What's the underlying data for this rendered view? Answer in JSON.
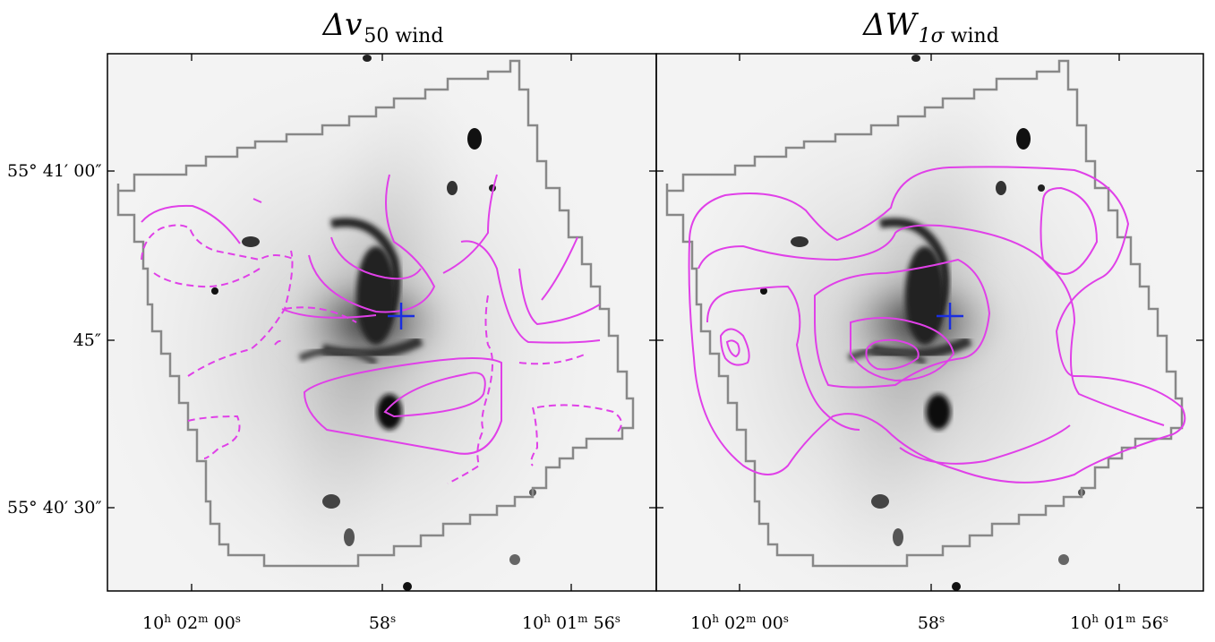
{
  "panels": [
    {
      "title_main": "Δv",
      "title_sub": "50 wind",
      "title_sub_italic": ""
    },
    {
      "title_main": "ΔW",
      "title_sub": " wind",
      "title_sub_italic": "1σ"
    }
  ],
  "y_ticks": [
    {
      "deg": "55°",
      "min": "41′",
      "sec": "00″"
    },
    {
      "deg": "",
      "min": "",
      "sec": "45″"
    },
    {
      "deg": "55°",
      "min": "40′",
      "sec": "30″"
    }
  ],
  "x_ticks": [
    {
      "h": "10",
      "hu": "h",
      "m": "02",
      "mu": "m",
      "s": "00",
      "su": "s"
    },
    {
      "h": "",
      "hu": "",
      "m": "",
      "mu": "",
      "s": "58",
      "su": "s"
    },
    {
      "h": "10",
      "hu": "h",
      "m": "01",
      "mu": "m",
      "s": "56",
      "su": "s"
    }
  ],
  "colors": {
    "contour": "#e040e8",
    "footprint": "#888888",
    "center_marker": "#1a2ee0"
  }
}
